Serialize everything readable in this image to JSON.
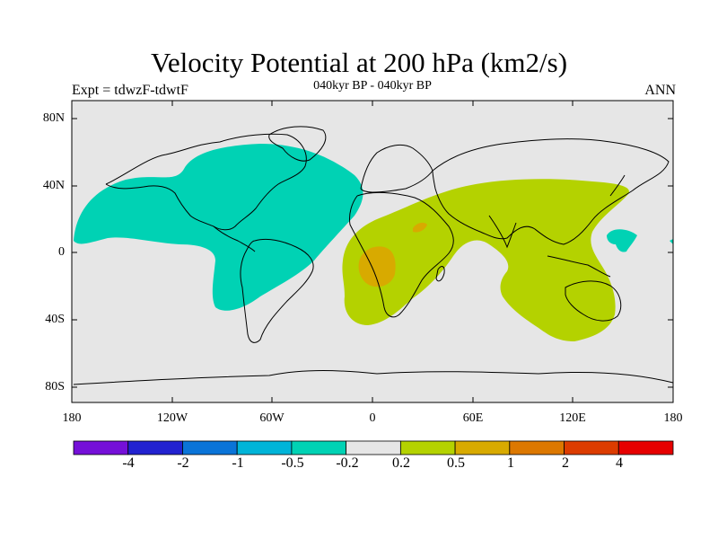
{
  "title": "Velocity Potential at 200 hPa (km2/s)",
  "left_subtitle": "Expt = tdwzF-tdwtF",
  "center_subtitle": "040kyr BP - 040kyr BP",
  "right_subtitle": "ANN",
  "lat_labels": [
    "80N",
    "40N",
    "0",
    "40S",
    "80S"
  ],
  "lon_labels": [
    "180",
    "120W",
    "60W",
    "0",
    "60E",
    "120E",
    "180"
  ],
  "colorbar": {
    "labels": [
      "-4",
      "-2",
      "-1",
      "-0.5",
      "-0.2",
      "0.2",
      "0.5",
      "1",
      "2",
      "4"
    ],
    "colors": [
      "#7510d8",
      "#2222d0",
      "#0a74d8",
      "#00b4d8",
      "#00d2b4",
      "#e6e6e6",
      "#b4d200",
      "#d8aa00",
      "#dc7800",
      "#dc3c00",
      "#e60000"
    ]
  },
  "map_colors": {
    "background": "#e6e6e6",
    "negative_contour": "#00d2b4",
    "positive_contour": "#b4d200",
    "positive_strong": "#d8aa00"
  }
}
